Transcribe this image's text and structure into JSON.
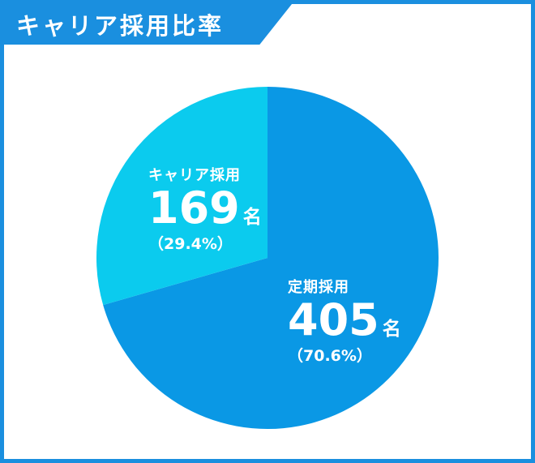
{
  "header": {
    "title": "キャリア採用比率"
  },
  "colors": {
    "accent": "#1a8fdf",
    "slice_regular": "#0a98e5",
    "slice_career": "#0bcbee"
  },
  "chart_data": {
    "type": "pie",
    "title": "キャリア採用比率",
    "slices": [
      {
        "name": "定期採用",
        "value": 405,
        "unit": "名",
        "percent_label": "（70.6%）"
      },
      {
        "name": "キャリア採用",
        "value": 169,
        "unit": "名",
        "percent_label": "（29.4%）"
      }
    ]
  }
}
